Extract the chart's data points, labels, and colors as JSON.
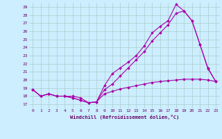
{
  "xlabel": "Windchill (Refroidissement éolien,°C)",
  "bg_color": "#cceeff",
  "line_color": "#aa00aa",
  "grid_color": "#aacccc",
  "x_ticks": [
    0,
    1,
    2,
    3,
    4,
    5,
    6,
    7,
    8,
    9,
    10,
    11,
    12,
    13,
    14,
    15,
    16,
    17,
    18,
    19,
    20,
    21,
    22,
    23
  ],
  "y_ticks": [
    17,
    18,
    19,
    20,
    21,
    22,
    23,
    24,
    25,
    26,
    27,
    28,
    29
  ],
  "xlim": [
    -0.5,
    23.5
  ],
  "ylim": [
    16.5,
    29.5
  ],
  "series": [
    {
      "x": [
        0,
        1,
        2,
        3,
        4,
        5,
        6,
        7,
        8,
        9,
        10,
        11,
        12,
        13,
        14,
        15,
        16,
        17,
        18,
        19,
        20,
        21,
        22,
        23
      ],
      "y": [
        18.8,
        18.0,
        18.3,
        18.0,
        18.0,
        18.0,
        17.8,
        17.2,
        17.3,
        19.3,
        20.8,
        21.5,
        22.2,
        23.0,
        24.2,
        25.8,
        26.6,
        27.3,
        29.3,
        28.5,
        27.3,
        24.4,
        21.5,
        19.8
      ]
    },
    {
      "comment": "middle line - peaks at x=19 ~28.5, x=20 ~27.3",
      "x": [
        0,
        1,
        2,
        3,
        4,
        5,
        6,
        7,
        8,
        9,
        10,
        11,
        12,
        13,
        14,
        15,
        16,
        17,
        18,
        19,
        20,
        21,
        22,
        23
      ],
      "y": [
        18.8,
        18.0,
        18.3,
        18.0,
        18.0,
        17.8,
        17.5,
        17.2,
        17.3,
        18.8,
        19.5,
        20.5,
        21.5,
        22.5,
        23.5,
        24.8,
        25.8,
        26.8,
        28.2,
        28.5,
        27.3,
        24.4,
        21.4,
        19.8
      ]
    },
    {
      "x": [
        0,
        1,
        2,
        3,
        4,
        5,
        6,
        7,
        8,
        9,
        10,
        11,
        12,
        13,
        14,
        15,
        16,
        17,
        18,
        19,
        20,
        21,
        22,
        23
      ],
      "y": [
        18.8,
        18.0,
        18.3,
        18.0,
        18.0,
        17.8,
        17.5,
        17.2,
        17.3,
        18.3,
        18.6,
        18.9,
        19.1,
        19.3,
        19.5,
        19.7,
        19.8,
        19.9,
        20.0,
        20.1,
        20.1,
        20.1,
        20.0,
        19.8
      ]
    }
  ]
}
